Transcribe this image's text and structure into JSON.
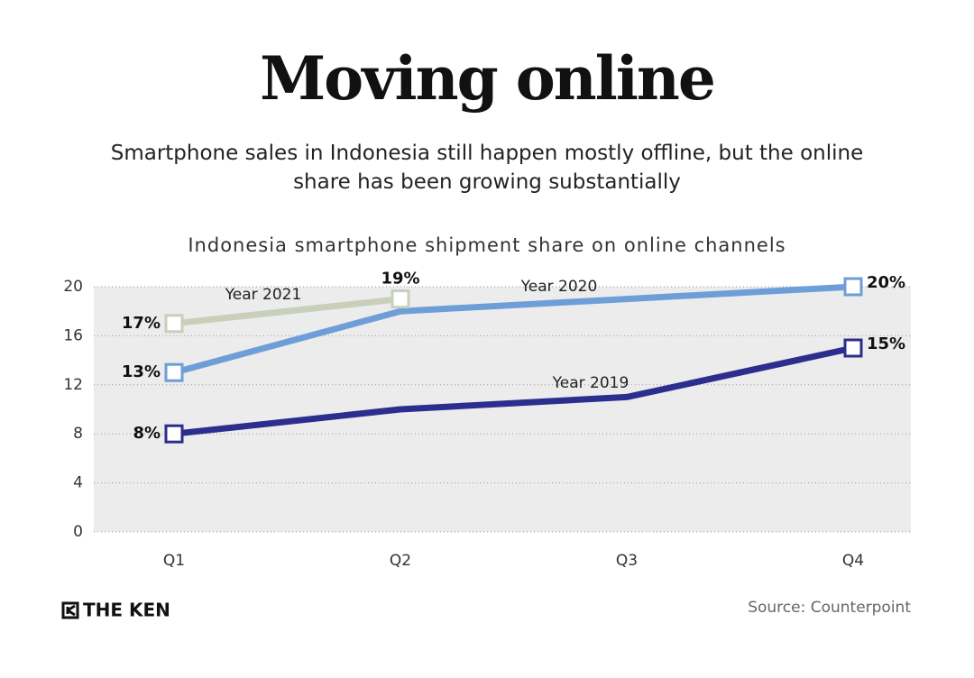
{
  "chart_data": {
    "type": "line",
    "title": "Moving online",
    "subtitle": "Smartphone sales in Indonesia still happen mostly offline, but the online share has been growing substantially",
    "chart_title": "Indonesia smartphone shipment share on online channels",
    "categories": [
      "Q1",
      "Q2",
      "Q3",
      "Q4"
    ],
    "series": [
      {
        "name": "Year 2019",
        "color": "#2c2e8e",
        "values": [
          8,
          10,
          11,
          15
        ],
        "value_labels": [
          "8%",
          null,
          null,
          "15%"
        ]
      },
      {
        "name": "Year 2020",
        "color": "#6e9ed8",
        "values": [
          13,
          18,
          19,
          20
        ],
        "value_labels": [
          "13%",
          null,
          null,
          "20%"
        ]
      },
      {
        "name": "Year 2021",
        "color": "#c8d0b9",
        "values": [
          17,
          19,
          null,
          null
        ],
        "value_labels": [
          "17%",
          "19%",
          null,
          null
        ]
      }
    ],
    "ylim": [
      0,
      20
    ],
    "yticks": [
      0,
      4,
      8,
      12,
      16,
      20
    ],
    "grid": true,
    "brand": "THE KEN",
    "source": "Source: Counterpoint"
  }
}
